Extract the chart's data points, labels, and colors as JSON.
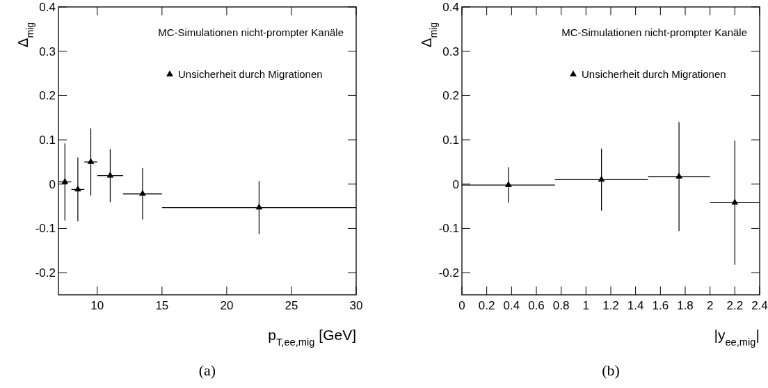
{
  "chart_data": [
    {
      "type": "scatter",
      "title": null,
      "xlabel": "p$_{T,ee,mig}$ [GeV]",
      "ylabel": "Δ$_{mig}$",
      "legend_title": "MC-Simulationen nicht-prompter Kanäle",
      "legend": "top right",
      "marker": "triangle",
      "x": [
        7.5,
        8.5,
        9.5,
        11,
        13.5,
        22.5
      ],
      "series": [
        {
          "name": "Unsicherheit durch Migrationen",
          "color": "#000000",
          "values": [
            0.005,
            -0.012,
            0.05,
            0.019,
            -0.022,
            -0.053
          ],
          "errors": [
            0.087,
            0.072,
            0.076,
            0.06,
            0.058,
            0.06
          ],
          "xerrors": [
            0.5,
            0.5,
            0.5,
            1,
            1.5,
            7.5
          ]
        }
      ],
      "xlim": [
        7,
        30
      ],
      "xticks": [
        10,
        15,
        20,
        25,
        30
      ],
      "ylim": [
        -0.25,
        0.4
      ],
      "yticks": [
        -0.2,
        -0.1,
        0,
        0.1,
        0.2,
        0.3,
        0.4
      ],
      "grid": false,
      "annotations": [
        "(a)"
      ]
    },
    {
      "type": "scatter",
      "title": null,
      "xlabel": "|y$_{ee,mig}$|",
      "ylabel": "Δ$_{mig}$",
      "legend_title": "MC-Simulationen nicht-prompter Kanäle",
      "legend": "top right",
      "marker": "triangle",
      "x": [
        0.375,
        1.125,
        1.75,
        2.2
      ],
      "series": [
        {
          "name": "Unsicherheit durch Migrationen",
          "color": "#000000",
          "values": [
            -0.002,
            0.01,
            0.017,
            -0.042
          ],
          "errors": [
            0.04,
            0.07,
            0.123,
            0.14
          ],
          "xerrors": [
            0.375,
            0.375,
            0.25,
            0.2
          ]
        }
      ],
      "xlim": [
        0,
        2.4
      ],
      "xticks": [
        0,
        0.2,
        0.4,
        0.6,
        0.8,
        1,
        1.2,
        1.4,
        1.6,
        1.8,
        2,
        2.2,
        2.4
      ],
      "ylim": [
        -0.25,
        0.4
      ],
      "yticks": [
        -0.2,
        -0.1,
        0,
        0.1,
        0.2,
        0.3,
        0.4
      ],
      "grid": false,
      "annotations": [
        "(b)"
      ]
    }
  ]
}
